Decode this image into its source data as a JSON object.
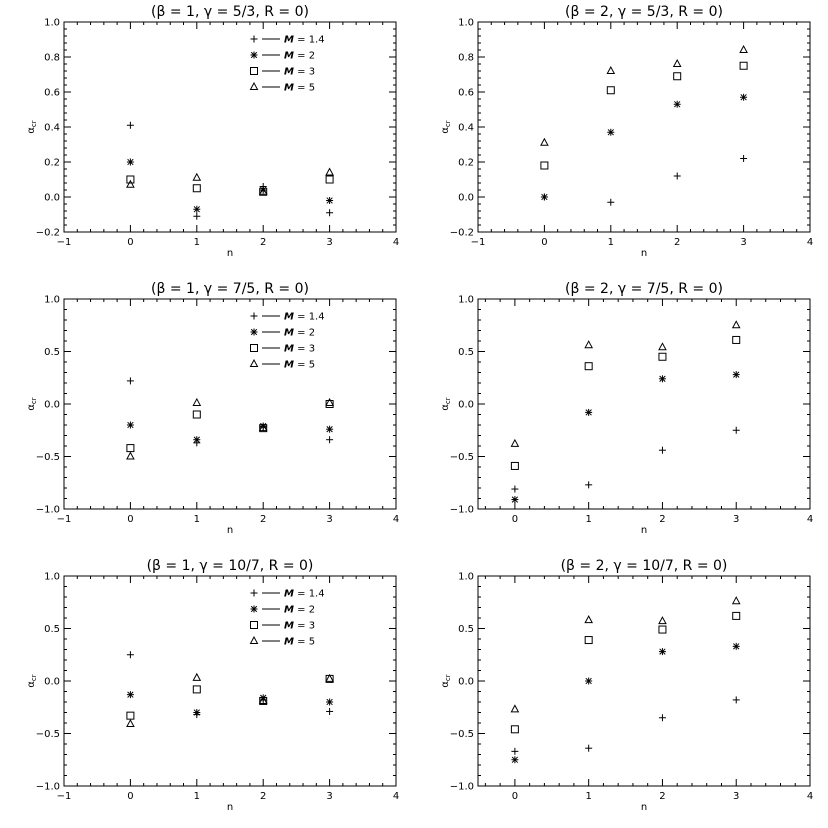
{
  "figure": {
    "legend_labels": [
      "M = 1.4",
      "M = 2",
      "M = 3",
      "M = 5"
    ],
    "markers": [
      "plus",
      "asterisk",
      "square",
      "triangle"
    ]
  },
  "chart_data": [
    {
      "type": "scatter",
      "title": "(β = 1, γ = 5/3, R = 0)",
      "xlabel": "n",
      "ylabel": "αcr",
      "xlim": [
        -1,
        4
      ],
      "ylim": [
        -0.2,
        1.0
      ],
      "xticks": [
        -1,
        0,
        1,
        2,
        3,
        4
      ],
      "xtick_labels": [
        "−1",
        "0",
        "1",
        "2",
        "3",
        "4"
      ],
      "yticks": [
        -0.2,
        0.0,
        0.2,
        0.4,
        0.6,
        0.8,
        1.0
      ],
      "ytick_labels": [
        "−0.2",
        "0.0",
        "0.2",
        "0.4",
        "0.6",
        "0.8",
        "1.0"
      ],
      "legend": "top-right",
      "x": [
        0,
        1,
        2,
        3
      ],
      "series": [
        {
          "name": "M = 1.4",
          "marker": "plus",
          "values": [
            0.41,
            -0.11,
            0.06,
            -0.09
          ]
        },
        {
          "name": "M = 2",
          "marker": "asterisk",
          "values": [
            0.2,
            -0.07,
            0.04,
            -0.02
          ]
        },
        {
          "name": "M = 3",
          "marker": "square",
          "values": [
            0.1,
            0.05,
            0.03,
            0.1
          ]
        },
        {
          "name": "M = 5",
          "marker": "triangle",
          "values": [
            0.07,
            0.11,
            0.03,
            0.14
          ]
        }
      ]
    },
    {
      "type": "scatter",
      "title": "(β = 2, γ = 5/3, R = 0)",
      "xlabel": "n",
      "ylabel": "αcr",
      "xlim": [
        -1,
        4
      ],
      "ylim": [
        -0.2,
        1.0
      ],
      "xticks": [
        -1,
        0,
        1,
        2,
        3,
        4
      ],
      "xtick_labels": [
        "−1",
        "0",
        "1",
        "2",
        "3",
        "4"
      ],
      "yticks": [
        -0.2,
        0.0,
        0.2,
        0.4,
        0.6,
        0.8,
        1.0
      ],
      "ytick_labels": [
        "−0.2",
        "0.0",
        "0.2",
        "0.4",
        "0.6",
        "0.8",
        "1.0"
      ],
      "legend": "none",
      "x": [
        0,
        1,
        2,
        3
      ],
      "series": [
        {
          "name": "M = 1.4",
          "marker": "plus",
          "values": [
            0.0,
            -0.03,
            0.12,
            0.22
          ]
        },
        {
          "name": "M = 2",
          "marker": "asterisk",
          "values": [
            0.0,
            0.37,
            0.53,
            0.57
          ]
        },
        {
          "name": "M = 3",
          "marker": "square",
          "values": [
            0.18,
            0.61,
            0.69,
            0.75
          ]
        },
        {
          "name": "M = 5",
          "marker": "triangle",
          "values": [
            0.31,
            0.72,
            0.76,
            0.84
          ]
        }
      ]
    },
    {
      "type": "scatter",
      "title": "(β = 1, γ = 7/5, R = 0)",
      "xlabel": "n",
      "ylabel": "αcr",
      "xlim": [
        -1,
        4
      ],
      "ylim": [
        -1.0,
        1.0
      ],
      "xticks": [
        -1,
        0,
        1,
        2,
        3,
        4
      ],
      "xtick_labels": [
        "−1",
        "0",
        "1",
        "2",
        "3",
        "4"
      ],
      "yticks": [
        -1.0,
        -0.5,
        0.0,
        0.5,
        1.0
      ],
      "ytick_labels": [
        "−1.0",
        "−0.5",
        "0.0",
        "0.5",
        "1.0"
      ],
      "legend": "top-right",
      "x": [
        0,
        1,
        2,
        3
      ],
      "series": [
        {
          "name": "M = 1.4",
          "marker": "plus",
          "values": [
            0.22,
            -0.37,
            -0.22,
            -0.34
          ]
        },
        {
          "name": "M = 2",
          "marker": "asterisk",
          "values": [
            -0.2,
            -0.34,
            -0.21,
            -0.24
          ]
        },
        {
          "name": "M = 3",
          "marker": "square",
          "values": [
            -0.42,
            -0.1,
            -0.23,
            0.0
          ]
        },
        {
          "name": "M = 5",
          "marker": "triangle",
          "values": [
            -0.5,
            0.01,
            -0.23,
            0.01
          ]
        }
      ]
    },
    {
      "type": "scatter",
      "title": "(β = 2, γ = 7/5, R = 0)",
      "xlabel": "n",
      "ylabel": "αcr",
      "xlim": [
        -0.5,
        4
      ],
      "ylim": [
        -1.0,
        1.0
      ],
      "xticks": [
        0,
        1,
        2,
        3,
        4
      ],
      "xtick_labels": [
        "0",
        "1",
        "2",
        "3",
        "4"
      ],
      "yticks": [
        -1.0,
        -0.5,
        0.0,
        0.5,
        1.0
      ],
      "ytick_labels": [
        "−1.0",
        "−0.5",
        "0.0",
        "0.5",
        "1.0"
      ],
      "legend": "none",
      "x": [
        0,
        1,
        2,
        3
      ],
      "series": [
        {
          "name": "M = 1.4",
          "marker": "plus",
          "values": [
            -0.81,
            -0.77,
            -0.44,
            -0.25
          ]
        },
        {
          "name": "M = 2",
          "marker": "asterisk",
          "values": [
            -0.91,
            -0.08,
            0.24,
            0.28
          ]
        },
        {
          "name": "M = 3",
          "marker": "square",
          "values": [
            -0.59,
            0.36,
            0.45,
            0.61
          ]
        },
        {
          "name": "M = 5",
          "marker": "triangle",
          "values": [
            -0.38,
            0.56,
            0.54,
            0.75
          ]
        }
      ]
    },
    {
      "type": "scatter",
      "title": "(β = 1, γ = 10/7, R = 0)",
      "xlabel": "n",
      "ylabel": "αcr",
      "xlim": [
        -1,
        4
      ],
      "ylim": [
        -1.0,
        1.0
      ],
      "xticks": [
        -1,
        0,
        1,
        2,
        3,
        4
      ],
      "xtick_labels": [
        "−1",
        "0",
        "1",
        "2",
        "3",
        "4"
      ],
      "yticks": [
        -1.0,
        -0.5,
        0.0,
        0.5,
        1.0
      ],
      "ytick_labels": [
        "−1.0",
        "−0.5",
        "0.0",
        "0.5",
        "1.0"
      ],
      "legend": "top-right",
      "x": [
        0,
        1,
        2,
        3
      ],
      "series": [
        {
          "name": "M = 1.4",
          "marker": "plus",
          "values": [
            0.25,
            -0.32,
            -0.18,
            -0.29
          ]
        },
        {
          "name": "M = 2",
          "marker": "asterisk",
          "values": [
            -0.13,
            -0.3,
            -0.16,
            -0.2
          ]
        },
        {
          "name": "M = 3",
          "marker": "square",
          "values": [
            -0.33,
            -0.08,
            -0.19,
            0.02
          ]
        },
        {
          "name": "M = 5",
          "marker": "triangle",
          "values": [
            -0.41,
            0.03,
            -0.19,
            0.02
          ]
        }
      ]
    },
    {
      "type": "scatter",
      "title": "(β = 2, γ = 10/7, R = 0)",
      "xlabel": "n",
      "ylabel": "αcr",
      "xlim": [
        -0.5,
        4
      ],
      "ylim": [
        -1.0,
        1.0
      ],
      "xticks": [
        0,
        1,
        2,
        3,
        4
      ],
      "xtick_labels": [
        "0",
        "1",
        "2",
        "3",
        "4"
      ],
      "yticks": [
        -1.0,
        -0.5,
        0.0,
        0.5,
        1.0
      ],
      "ytick_labels": [
        "−1.0",
        "−0.5",
        "0.0",
        "0.5",
        "1.0"
      ],
      "legend": "none",
      "x": [
        0,
        1,
        2,
        3
      ],
      "series": [
        {
          "name": "M = 1.4",
          "marker": "plus",
          "values": [
            -0.67,
            -0.64,
            -0.35,
            -0.18
          ]
        },
        {
          "name": "M = 2",
          "marker": "asterisk",
          "values": [
            -0.75,
            0.0,
            0.28,
            0.33
          ]
        },
        {
          "name": "M = 3",
          "marker": "square",
          "values": [
            -0.46,
            0.39,
            0.49,
            0.62
          ]
        },
        {
          "name": "M = 5",
          "marker": "triangle",
          "values": [
            -0.27,
            0.58,
            0.57,
            0.76
          ]
        }
      ]
    }
  ]
}
